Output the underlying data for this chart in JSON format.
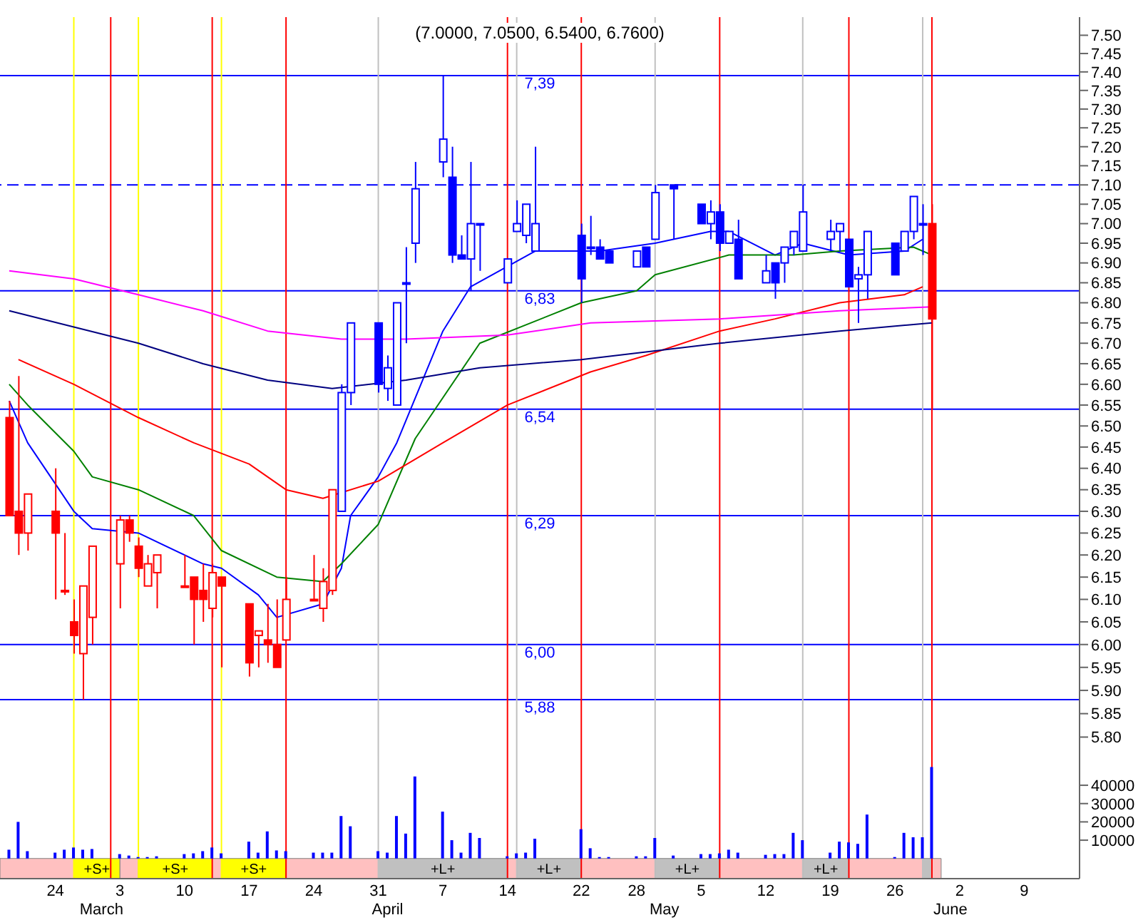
{
  "chart_data": [
    {
      "type": "candlestick",
      "title": "(7.0000, 7.0500, 6.5400, 6.7600)",
      "x": [
        "--02-19",
        "--02-20",
        "--02-21",
        "--02-24",
        "--02-25",
        "--02-26",
        "--02-27",
        "--02-28",
        "--03-03",
        "--03-04",
        "--03-05",
        "--03-06",
        "--03-07",
        "--03-10",
        "--03-11",
        "--03-12",
        "--03-13",
        "--03-14",
        "--03-17",
        "--03-18",
        "--03-19",
        "--03-20",
        "--03-21",
        "--03-24",
        "--03-25",
        "--03-26",
        "--03-27",
        "--03-28",
        "--03-31",
        "--04-01",
        "--04-02",
        "--04-03",
        "--04-04",
        "--04-07",
        "--04-08",
        "--04-09",
        "--04-10",
        "--04-11",
        "--04-14",
        "--04-15",
        "--04-16",
        "--04-17",
        "--04-22",
        "--04-23",
        "--04-24",
        "--04-25",
        "--04-28",
        "--04-29",
        "--04-30",
        "--05-02",
        "--05-05",
        "--05-06",
        "--05-07",
        "--05-08",
        "--05-09",
        "--05-12",
        "--05-13",
        "--05-14",
        "--05-15",
        "--05-16",
        "--05-19",
        "--05-20",
        "--05-21",
        "--05-22",
        "--05-23",
        "--05-26",
        "--05-27",
        "--05-28",
        "--05-29",
        "--05-30"
      ],
      "ohlc": [
        [
          6.52,
          6.56,
          6.29,
          6.29
        ],
        [
          6.3,
          6.62,
          6.2,
          6.25
        ],
        [
          6.25,
          6.34,
          6.21,
          6.34
        ],
        [
          6.3,
          6.4,
          6.1,
          6.25
        ],
        [
          6.12,
          6.25,
          6.11,
          6.12
        ],
        [
          6.05,
          6.1,
          5.98,
          6.02
        ],
        [
          5.98,
          6.13,
          5.88,
          6.13
        ],
        [
          6.06,
          6.22,
          6.0,
          6.22
        ],
        [
          6.18,
          6.29,
          6.08,
          6.28
        ],
        [
          6.28,
          6.29,
          6.23,
          6.25
        ],
        [
          6.22,
          6.24,
          6.15,
          6.17
        ],
        [
          6.13,
          6.2,
          6.13,
          6.18
        ],
        [
          6.16,
          6.2,
          6.08,
          6.2
        ],
        [
          6.13,
          6.2,
          6.13,
          6.13
        ],
        [
          6.15,
          6.15,
          6.0,
          6.1
        ],
        [
          6.12,
          6.18,
          6.05,
          6.1
        ],
        [
          6.08,
          6.18,
          6.06,
          6.16
        ],
        [
          6.15,
          6.15,
          5.95,
          6.13
        ],
        [
          6.09,
          6.09,
          5.93,
          5.96
        ],
        [
          6.02,
          6.03,
          5.95,
          6.03
        ],
        [
          6.01,
          6.09,
          5.96,
          6.0
        ],
        [
          6.0,
          6.1,
          5.95,
          5.95
        ],
        [
          6.01,
          6.15,
          6.01,
          6.1
        ],
        [
          6.1,
          6.2,
          6.1,
          6.1
        ],
        [
          6.08,
          6.17,
          6.05,
          6.14
        ],
        [
          6.12,
          6.35,
          6.11,
          6.35
        ],
        [
          6.3,
          6.6,
          6.3,
          6.58
        ],
        [
          6.58,
          6.75,
          6.55,
          6.75
        ],
        [
          6.75,
          6.75,
          6.58,
          6.6
        ],
        [
          6.59,
          6.67,
          6.56,
          6.64
        ],
        [
          6.55,
          6.8,
          6.55,
          6.8
        ],
        [
          6.85,
          6.94,
          6.7,
          6.85
        ],
        [
          6.95,
          7.16,
          6.9,
          7.09
        ],
        [
          7.16,
          7.39,
          7.12,
          7.22
        ],
        [
          7.12,
          7.2,
          6.9,
          6.92
        ],
        [
          6.92,
          6.97,
          6.91,
          6.91
        ],
        [
          6.91,
          7.16,
          6.83,
          7.0
        ],
        [
          7.0,
          7.0,
          6.88,
          7.0
        ],
        [
          6.85,
          6.91,
          6.85,
          6.91
        ],
        [
          6.98,
          7.06,
          6.98,
          7.0
        ],
        [
          6.97,
          7.05,
          6.95,
          7.05
        ],
        [
          6.93,
          7.2,
          6.93,
          7.0
        ],
        [
          6.97,
          7.0,
          6.8,
          6.86
        ],
        [
          6.94,
          7.02,
          6.92,
          6.94
        ],
        [
          6.94,
          6.96,
          6.91,
          6.91
        ],
        [
          6.93,
          6.93,
          6.9,
          6.9
        ],
        [
          6.89,
          6.93,
          6.89,
          6.93
        ],
        [
          6.94,
          6.94,
          6.89,
          6.89
        ],
        [
          6.96,
          7.1,
          6.96,
          7.08
        ],
        [
          7.1,
          7.1,
          6.96,
          7.09
        ],
        [
          7.05,
          7.05,
          7.0,
          7.0
        ],
        [
          7.0,
          7.06,
          6.96,
          7.03
        ],
        [
          7.03,
          7.05,
          6.93,
          6.95
        ],
        [
          6.95,
          6.98,
          6.95,
          6.98
        ],
        [
          6.96,
          7.01,
          6.86,
          6.86
        ],
        [
          6.85,
          6.92,
          6.85,
          6.88
        ],
        [
          6.9,
          6.9,
          6.81,
          6.85
        ],
        [
          6.9,
          6.94,
          6.85,
          6.94
        ],
        [
          6.94,
          6.98,
          6.92,
          6.98
        ],
        [
          6.93,
          7.1,
          6.93,
          7.03
        ],
        [
          6.96,
          7.01,
          6.93,
          6.98
        ],
        [
          6.98,
          7.0,
          6.93,
          7.0
        ],
        [
          6.96,
          6.96,
          6.84,
          6.84
        ],
        [
          6.86,
          6.89,
          6.75,
          6.87
        ],
        [
          6.87,
          6.98,
          6.81,
          6.98
        ],
        [
          6.95,
          6.95,
          6.87,
          6.87
        ],
        [
          6.93,
          6.98,
          6.93,
          6.98
        ],
        [
          6.98,
          7.07,
          6.96,
          7.07
        ],
        [
          7.0,
          7.05,
          6.92,
          7.0
        ],
        [
          7.0,
          7.05,
          6.54,
          6.76
        ]
      ],
      "colors": [
        "#ff0000",
        "#ff0000",
        "#ff0000",
        "#ff0000",
        "#ff0000",
        "#ff0000",
        "#ff0000",
        "#ff0000",
        "#ff0000",
        "#ff0000",
        "#ff0000",
        "#ff0000",
        "#ff0000",
        "#ff0000",
        "#ff0000",
        "#ff0000",
        "#ff0000",
        "#ff0000",
        "#ff0000",
        "#ff0000",
        "#ff0000",
        "#ff0000",
        "#ff0000",
        "#ff0000",
        "#ff0000",
        "#ff0000",
        "#0000ff",
        "#0000ff",
        "#0000ff",
        "#0000ff",
        "#0000ff",
        "#0000ff",
        "#0000ff",
        "#0000ff",
        "#0000ff",
        "#0000ff",
        "#0000ff",
        "#0000ff",
        "#0000ff",
        "#0000ff",
        "#0000ff",
        "#0000ff",
        "#0000ff",
        "#0000ff",
        "#0000ff",
        "#0000ff",
        "#0000ff",
        "#0000ff",
        "#0000ff",
        "#0000ff",
        "#0000ff",
        "#0000ff",
        "#0000ff",
        "#0000ff",
        "#0000ff",
        "#0000ff",
        "#0000ff",
        "#0000ff",
        "#0000ff",
        "#0000ff",
        "#0000ff",
        "#0000ff",
        "#0000ff",
        "#0000ff",
        "#0000ff",
        "#0000ff",
        "#0000ff",
        "#0000ff",
        "#0000ff",
        "#ff0000"
      ],
      "series": [
        {
          "type": "line",
          "color": "#0000ff",
          "x": [
            "--02-19",
            "--02-21",
            "--02-26",
            "--02-28",
            "--03-05",
            "--03-12",
            "--03-14",
            "--03-18",
            "--03-20",
            "--03-25",
            "--03-27",
            "--03-28",
            "--03-31",
            "--04-02",
            "--04-07",
            "--04-10",
            "--04-17",
            "--04-24",
            "--04-30",
            "--05-06",
            "--05-08",
            "--05-13",
            "--05-16",
            "--05-21",
            "--05-27",
            "--05-29"
          ],
          "values": [
            6.56,
            6.46,
            6.3,
            6.26,
            6.25,
            6.18,
            6.17,
            6.11,
            6.06,
            6.09,
            6.17,
            6.29,
            6.38,
            6.46,
            6.73,
            6.84,
            6.93,
            6.93,
            6.95,
            6.98,
            6.98,
            6.92,
            6.95,
            6.92,
            6.93,
            6.96
          ]
        },
        {
          "type": "line",
          "color": "#008000",
          "x": [
            "--02-19",
            "--02-21",
            "--02-26",
            "--02-28",
            "--03-05",
            "--03-11",
            "--03-14",
            "--03-20",
            "--03-25",
            "--03-27",
            "--03-31",
            "--04-04",
            "--04-11",
            "--04-22",
            "--04-28",
            "--04-30",
            "--05-08",
            "--05-15",
            "--05-20",
            "--05-28",
            "--05-30"
          ],
          "values": [
            6.6,
            6.55,
            6.44,
            6.38,
            6.35,
            6.29,
            6.21,
            6.15,
            6.14,
            6.18,
            6.27,
            6.47,
            6.7,
            6.8,
            6.83,
            6.87,
            6.92,
            6.92,
            6.93,
            6.94,
            6.92
          ]
        },
        {
          "type": "line",
          "color": "#ff0000",
          "x": [
            "--02-20",
            "--02-26",
            "--03-05",
            "--03-11",
            "--03-17",
            "--03-21",
            "--03-25",
            "--03-31",
            "--04-07",
            "--04-14",
            "--04-23",
            "--04-29",
            "--05-07",
            "--05-13",
            "--05-20",
            "--05-27",
            "--05-29"
          ],
          "values": [
            6.66,
            6.6,
            6.52,
            6.46,
            6.41,
            6.35,
            6.33,
            6.37,
            6.46,
            6.55,
            6.63,
            6.67,
            6.73,
            6.76,
            6.8,
            6.82,
            6.84
          ]
        },
        {
          "type": "line",
          "color": "#ff00ff",
          "x": [
            "--02-19",
            "--02-26",
            "--03-05",
            "--03-12",
            "--03-19",
            "--03-27",
            "--04-03",
            "--04-14",
            "--04-23",
            "--05-07",
            "--05-20",
            "--05-30"
          ],
          "values": [
            6.88,
            6.86,
            6.82,
            6.78,
            6.73,
            6.71,
            6.71,
            6.72,
            6.75,
            6.76,
            6.78,
            6.79
          ]
        },
        {
          "type": "line",
          "color": "#000080",
          "x": [
            "--02-19",
            "--02-26",
            "--03-05",
            "--03-12",
            "--03-19",
            "--03-26",
            "--04-03",
            "--04-11",
            "--04-22",
            "--05-07",
            "--05-20",
            "--05-30"
          ],
          "values": [
            6.78,
            6.74,
            6.7,
            6.65,
            6.61,
            6.59,
            6.61,
            6.64,
            6.66,
            6.7,
            6.73,
            6.75
          ]
        }
      ],
      "xlim": [
        "--02-18",
        "--06-15"
      ],
      "ylim": [
        5.76,
        7.55
      ],
      "log": true,
      "tick_labels": "y",
      "yticks": [
        {
          "value": 5.8,
          "label": "5.80"
        },
        {
          "value": 5.85,
          "label": "5.85"
        },
        {
          "value": 5.9,
          "label": "5.90"
        },
        {
          "value": 5.95,
          "label": "5.95"
        },
        {
          "value": 6.0,
          "label": "6.00"
        },
        {
          "value": 6.05,
          "label": "6.05"
        },
        {
          "value": 6.1,
          "label": "6.10"
        },
        {
          "value": 6.15,
          "label": "6.15"
        },
        {
          "value": 6.2,
          "label": "6.20"
        },
        {
          "value": 6.25,
          "label": "6.25"
        },
        {
          "value": 6.3,
          "label": "6.30"
        },
        {
          "value": 6.35,
          "label": "6.35"
        },
        {
          "value": 6.4,
          "label": "6.40"
        },
        {
          "value": 6.45,
          "label": "6.45"
        },
        {
          "value": 6.5,
          "label": "6.50"
        },
        {
          "value": 6.55,
          "label": "6.55"
        },
        {
          "value": 6.6,
          "label": "6.60"
        },
        {
          "value": 6.65,
          "label": "6.65"
        },
        {
          "value": 6.7,
          "label": "6.70"
        },
        {
          "value": 6.75,
          "label": "6.75"
        },
        {
          "value": 6.8,
          "label": "6.80"
        },
        {
          "value": 6.85,
          "label": "6.85"
        },
        {
          "value": 6.9,
          "label": "6.90"
        },
        {
          "value": 6.95,
          "label": "6.95"
        },
        {
          "value": 7.0,
          "label": "7.00"
        },
        {
          "value": 7.05,
          "label": "7.05"
        },
        {
          "value": 7.1,
          "label": "7.10"
        },
        {
          "value": 7.15,
          "label": "7.15"
        },
        {
          "value": 7.2,
          "label": "7.20"
        },
        {
          "value": 7.25,
          "label": "7.25"
        },
        {
          "value": 7.3,
          "label": "7.30"
        },
        {
          "value": 7.35,
          "label": "7.35"
        },
        {
          "value": 7.4,
          "label": "7.40"
        },
        {
          "value": 7.45,
          "label": "7.45"
        },
        {
          "value": 7.5,
          "label": "7.50"
        }
      ],
      "ref_lines": [
        {
          "axis": "y",
          "value": 7.39,
          "label": "7,39",
          "color": "#0000ff"
        },
        {
          "axis": "y",
          "value": 6.83,
          "label": "6,83",
          "color": "#0000ff"
        },
        {
          "axis": "y",
          "value": 6.54,
          "label": "6,54",
          "color": "#0000ff"
        },
        {
          "axis": "y",
          "value": 6.29,
          "label": "6,29",
          "color": "#0000ff"
        },
        {
          "axis": "y",
          "value": 6.0,
          "label": "6,00",
          "color": "#0000ff"
        },
        {
          "axis": "y",
          "value": 5.88,
          "label": "5,88",
          "color": "#0000ff"
        },
        {
          "axis": "y",
          "value": 7.1,
          "color": "#0000ff",
          "line_style": "dashed"
        },
        {
          "axis": "x",
          "value": "--02-26",
          "color": "#ffff00"
        },
        {
          "axis": "x",
          "value": "--03-05",
          "color": "#ffff00"
        },
        {
          "axis": "x",
          "value": "--03-14",
          "color": "#ffff00"
        },
        {
          "axis": "x",
          "value": "--03-02",
          "color": "#ff0000"
        },
        {
          "axis": "x",
          "value": "--03-13",
          "color": "#ff0000"
        },
        {
          "axis": "x",
          "value": "--03-21",
          "color": "#ff0000"
        },
        {
          "axis": "x",
          "value": "--04-14",
          "color": "#ff0000"
        },
        {
          "axis": "x",
          "value": "--04-22",
          "color": "#ff0000"
        },
        {
          "axis": "x",
          "value": "--05-07",
          "color": "#ff0000"
        },
        {
          "axis": "x",
          "value": "--05-21",
          "color": "#ff0000"
        },
        {
          "axis": "x",
          "value": "--05-30",
          "color": "#ff0000"
        },
        {
          "axis": "x",
          "value": "--03-31",
          "color": "#c0c0c0"
        },
        {
          "axis": "x",
          "value": "--04-15",
          "color": "#c0c0c0"
        },
        {
          "axis": "x",
          "value": "--04-30",
          "color": "#c0c0c0"
        },
        {
          "axis": "x",
          "value": "--05-16",
          "color": "#c0c0c0"
        },
        {
          "axis": "x",
          "value": "--05-29",
          "color": "#c0c0c0"
        }
      ]
    },
    {
      "type": "bar",
      "x": [
        "--02-19",
        "--02-20",
        "--02-21",
        "--02-24",
        "--02-25",
        "--02-26",
        "--02-27",
        "--02-28",
        "--03-03",
        "--03-04",
        "--03-05",
        "--03-06",
        "--03-07",
        "--03-10",
        "--03-11",
        "--03-12",
        "--03-13",
        "--03-14",
        "--03-17",
        "--03-18",
        "--03-19",
        "--03-20",
        "--03-21",
        "--03-24",
        "--03-25",
        "--03-26",
        "--03-27",
        "--03-28",
        "--03-31",
        "--04-01",
        "--04-02",
        "--04-03",
        "--04-04",
        "--04-07",
        "--04-08",
        "--04-09",
        "--04-10",
        "--04-11",
        "--04-14",
        "--04-15",
        "--04-16",
        "--04-17",
        "--04-22",
        "--04-23",
        "--04-24",
        "--04-25",
        "--04-28",
        "--04-29",
        "--04-30",
        "--05-02",
        "--05-05",
        "--05-06",
        "--05-07",
        "--05-08",
        "--05-09",
        "--05-12",
        "--05-13",
        "--05-14",
        "--05-15",
        "--05-16",
        "--05-19",
        "--05-20",
        "--05-21",
        "--05-22",
        "--05-23",
        "--05-26",
        "--05-27",
        "--05-28",
        "--05-29",
        "--05-30"
      ],
      "values": [
        4800,
        20000,
        4000,
        3200,
        4800,
        6000,
        4800,
        5200,
        2400,
        1600,
        800,
        800,
        1200,
        2400,
        2800,
        4000,
        6000,
        2800,
        9200,
        3200,
        14800,
        4400,
        4000,
        3200,
        3200,
        3200,
        23200,
        17600,
        4000,
        3200,
        23200,
        13600,
        44800,
        25600,
        10000,
        3200,
        14000,
        11200,
        1200,
        2800,
        3200,
        10800,
        16000,
        5600,
        800,
        800,
        1200,
        1200,
        11200,
        1600,
        2400,
        2400,
        2800,
        4800,
        3200,
        2000,
        2400,
        2400,
        14000,
        10000,
        3200,
        9200,
        8800,
        8000,
        24000,
        800,
        14000,
        11600,
        11600,
        50000
      ],
      "color": "#0000ff",
      "xlim": [
        "--02-18",
        "--06-15"
      ],
      "ylim": [
        -11000,
        56000
      ],
      "yticks": [
        10000,
        20000,
        30000,
        40000
      ],
      "xticks": [
        {
          "value": "--02-24",
          "label": "24"
        },
        {
          "value": "--03-03",
          "label": "3"
        },
        {
          "value": "--03-10",
          "label": "10"
        },
        {
          "value": "--03-17",
          "label": "17"
        },
        {
          "value": "--03-24",
          "label": "24"
        },
        {
          "value": "--03-31",
          "label": "31"
        },
        {
          "value": "--04-07",
          "label": "7"
        },
        {
          "value": "--04-14",
          "label": "14"
        },
        {
          "value": "--04-22",
          "label": "22"
        },
        {
          "value": "--04-28",
          "label": "28"
        },
        {
          "value": "--05-05",
          "label": "5"
        },
        {
          "value": "--05-12",
          "label": "12"
        },
        {
          "value": "--05-19",
          "label": "19"
        },
        {
          "value": "--05-26",
          "label": "26"
        },
        {
          "value": "--06-02",
          "label": "2"
        },
        {
          "value": "--06-09",
          "label": "9"
        }
      ],
      "x2lim": [
        "--02-18",
        "--06-15"
      ],
      "x2ticks": [
        {
          "value": "--03-01",
          "label": "March"
        },
        {
          "value": "--04-01",
          "label": "April"
        },
        {
          "value": "--05-01",
          "label": "May"
        },
        {
          "value": "--06-01",
          "label": "June"
        }
      ],
      "ref_lines": [
        {
          "axis": "x",
          "value": "--02-26",
          "color": "#ffff00"
        },
        {
          "axis": "x",
          "value": "--03-05",
          "color": "#ffff00"
        },
        {
          "axis": "x",
          "value": "--03-14",
          "color": "#ffff00"
        },
        {
          "axis": "x",
          "value": "--03-02",
          "color": "#ff0000"
        },
        {
          "axis": "x",
          "value": "--03-13",
          "color": "#ff0000"
        },
        {
          "axis": "x",
          "value": "--03-21",
          "color": "#ff0000"
        },
        {
          "axis": "x",
          "value": "--04-14",
          "color": "#ff0000"
        },
        {
          "axis": "x",
          "value": "--04-22",
          "color": "#ff0000"
        },
        {
          "axis": "x",
          "value": "--05-07",
          "color": "#ff0000"
        },
        {
          "axis": "x",
          "value": "--05-21",
          "color": "#ff0000"
        },
        {
          "axis": "x",
          "value": "--05-30",
          "color": "#ff0000"
        },
        {
          "axis": "x",
          "value": "--03-31",
          "color": "#c0c0c0"
        },
        {
          "axis": "x",
          "value": "--04-15",
          "color": "#c0c0c0"
        },
        {
          "axis": "x",
          "value": "--04-30",
          "color": "#c0c0c0"
        },
        {
          "axis": "x",
          "value": "--05-16",
          "color": "#c0c0c0"
        },
        {
          "axis": "x",
          "value": "--05-29",
          "color": "#c0c0c0"
        }
      ],
      "bands": [
        {
          "axis": "x",
          "from": "--02-18",
          "to": "--02-26",
          "color": "#ffc0c0"
        },
        {
          "axis": "x",
          "from": "--02-26",
          "to": "--03-03",
          "label": "+S+",
          "color": "#ffff00"
        },
        {
          "axis": "x",
          "from": "--03-03",
          "to": "--03-05",
          "color": "#ffc0c0"
        },
        {
          "axis": "x",
          "from": "--03-05",
          "to": "--03-13",
          "label": "+S+",
          "color": "#ffff00"
        },
        {
          "axis": "x",
          "from": "--03-13",
          "to": "--03-14",
          "color": "#ffc0c0"
        },
        {
          "axis": "x",
          "from": "--03-14",
          "to": "--03-21",
          "label": "+S+",
          "color": "#ffff00"
        },
        {
          "axis": "x",
          "from": "--03-21",
          "to": "--03-31",
          "color": "#ffc0c0"
        },
        {
          "axis": "x",
          "from": "--03-31",
          "to": "--04-14",
          "label": "+L+",
          "color": "#c0c0c0"
        },
        {
          "axis": "x",
          "from": "--04-14",
          "to": "--04-15",
          "color": "#ffc0c0"
        },
        {
          "axis": "x",
          "from": "--04-15",
          "to": "--04-22",
          "label": "+L+",
          "color": "#c0c0c0"
        },
        {
          "axis": "x",
          "from": "--04-22",
          "to": "--04-30",
          "color": "#ffc0c0"
        },
        {
          "axis": "x",
          "from": "--04-30",
          "to": "--05-07",
          "label": "+L+",
          "color": "#c0c0c0"
        },
        {
          "axis": "x",
          "from": "--05-07",
          "to": "--05-16",
          "color": "#ffc0c0"
        },
        {
          "axis": "x",
          "from": "--05-16",
          "to": "--05-21",
          "label": "+L+",
          "color": "#c0c0c0"
        },
        {
          "axis": "x",
          "from": "--05-21",
          "to": "--05-29",
          "color": "#ffc0c0"
        },
        {
          "axis": "x",
          "from": "--05-29",
          "to": "--05-30",
          "color": "#c0c0c0"
        },
        {
          "axis": "x",
          "from": "--05-30",
          "to": "--05-31",
          "color": "#ffc0c0"
        }
      ]
    }
  ]
}
